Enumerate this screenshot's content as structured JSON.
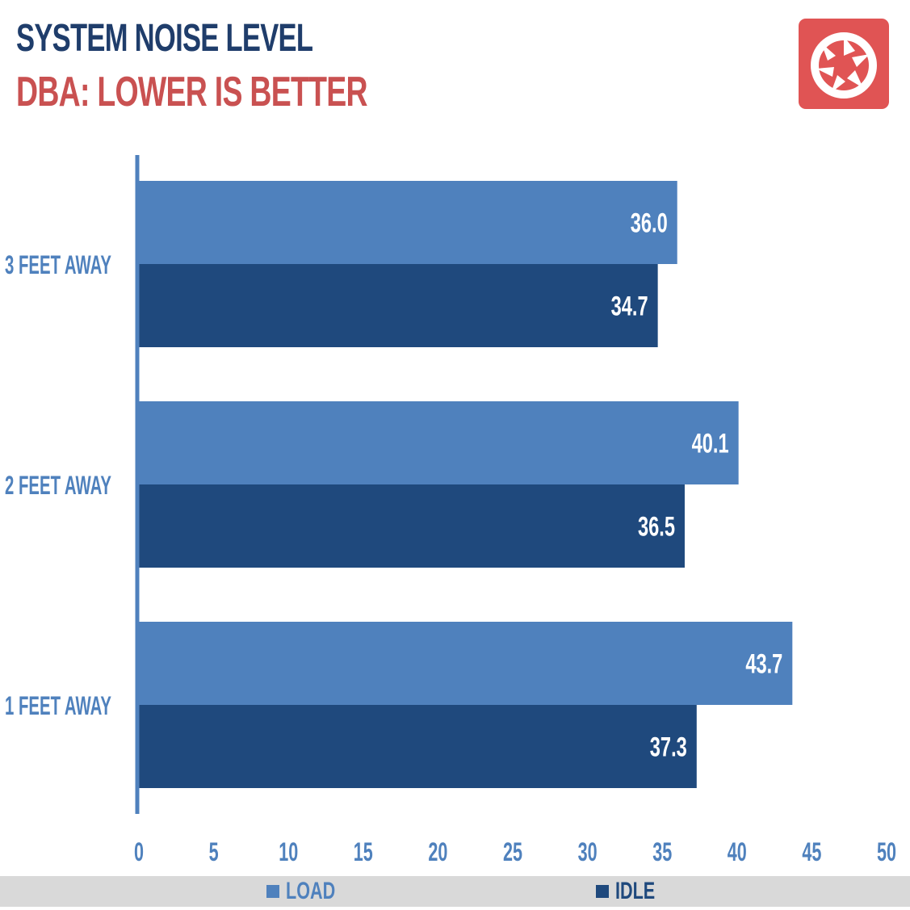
{
  "colors": {
    "title": "#1f3d6b",
    "subtitle": "#c95151",
    "load": "#4f81bd",
    "idle": "#1f497d",
    "axis": "#4f81bd",
    "tick_label": "#4f81bd",
    "category_label": "#4f81bd",
    "logo": "#e05454",
    "legend_bg": "#d9d9d9"
  },
  "logo": {
    "icon": "camera-aperture-icon"
  },
  "chart_data": {
    "type": "bar",
    "orientation": "horizontal",
    "title": "SYSTEM NOISE LEVEL",
    "subtitle": "DBA: LOWER IS BETTER",
    "categories": [
      "3 FEET AWAY",
      "2 FEET AWAY",
      "1 FEET AWAY"
    ],
    "series": [
      {
        "name": "LOAD",
        "values": [
          36.0,
          40.1,
          43.7
        ],
        "labels": [
          "36.0",
          "40.1",
          "43.7"
        ]
      },
      {
        "name": "IDLE",
        "values": [
          34.7,
          36.5,
          37.3
        ],
        "labels": [
          "34.7",
          "36.5",
          "37.3"
        ]
      }
    ],
    "xlim": [
      0,
      50
    ],
    "xticks": [
      "0",
      "5",
      "10",
      "15",
      "20",
      "25",
      "30",
      "35",
      "40",
      "45",
      "50"
    ],
    "xlabel": "",
    "ylabel": "",
    "grid": false,
    "legend_position": "bottom"
  }
}
